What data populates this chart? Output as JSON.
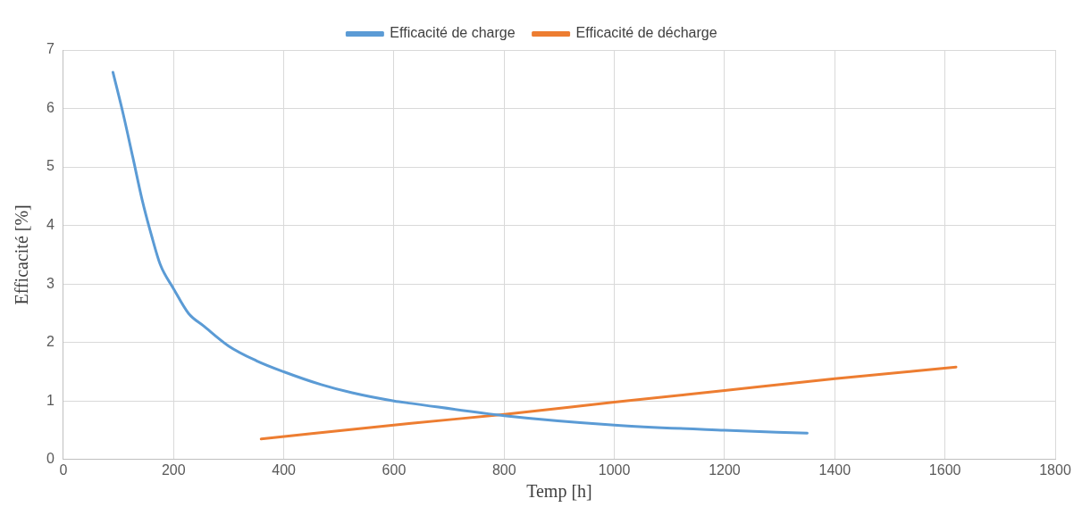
{
  "chart_data": {
    "type": "line",
    "xlabel": "Temp [h]",
    "ylabel": "Efficacité [%]",
    "xlim": [
      0,
      1800
    ],
    "xticks": [
      0,
      200,
      400,
      600,
      800,
      1000,
      1200,
      1400,
      1600,
      1800
    ],
    "ylim": [
      0,
      7
    ],
    "yticks": [
      0,
      1,
      2,
      3,
      4,
      5,
      6,
      7
    ],
    "grid": true,
    "legend": "top",
    "marker": "none",
    "line_style": "solid",
    "series": [
      {
        "name": "Efficacité de charge",
        "color": "#5b9bd5",
        "x": [
          90,
          109,
          126,
          143,
          160,
          176,
          200,
          227,
          255,
          300,
          350,
          400,
          468,
          524,
          600,
          631,
          800,
          1000,
          1200,
          1350
        ],
        "values": [
          6.62,
          5.89,
          5.17,
          4.44,
          3.83,
          3.33,
          2.92,
          2.5,
          2.28,
          1.94,
          1.69,
          1.5,
          1.28,
          1.14,
          1.0,
          0.96,
          0.75,
          0.59,
          0.5,
          0.45
        ]
      },
      {
        "name": "Efficacité de décharge",
        "color": "#ed7d31",
        "x": [
          359,
          631,
          800,
          1000,
          1200,
          1400,
          1620
        ],
        "values": [
          0.35,
          0.62,
          0.77,
          0.98,
          1.18,
          1.38,
          1.58
        ]
      }
    ]
  }
}
